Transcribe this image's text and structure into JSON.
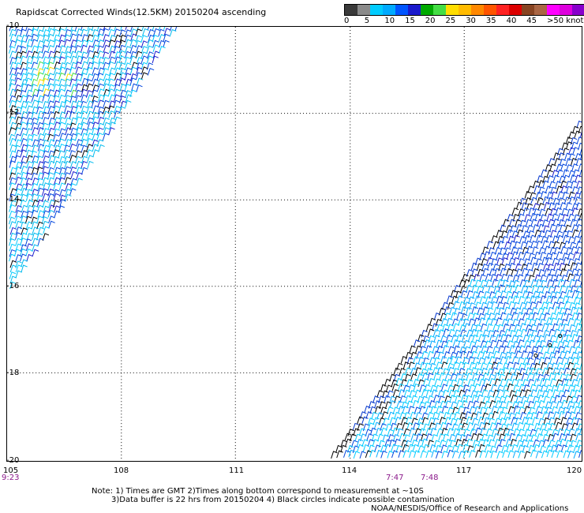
{
  "title": "Rapidscat Corrected Winds(12.5KM) 20150204 ascending",
  "legend": {
    "colors": [
      "#3a3a3a",
      "#8a8a8a",
      "#00ccff",
      "#00aaff",
      "#0055ff",
      "#1a1acc",
      "#00aa00",
      "#44dd44",
      "#ffdd00",
      "#ffbb00",
      "#ff8800",
      "#ff5500",
      "#ff2222",
      "#dd0000",
      "#884422",
      "#aa6644",
      "#ff00ff",
      "#dd00dd",
      "#8800cc",
      "#550099"
    ],
    "labels": [
      "0",
      "5",
      "10",
      "15",
      "20",
      "25",
      "30",
      "35",
      "40",
      "45",
      ">50 knots"
    ]
  },
  "axes": {
    "lat_labels": [
      "-10",
      "-12",
      "-14",
      "-16",
      "-18",
      "-20"
    ],
    "lon_labels": [
      "105",
      "108",
      "111",
      "114",
      "117",
      "120"
    ]
  },
  "times": [
    "9:23",
    "7:47",
    "7:48"
  ],
  "notes": {
    "line1": "Note: 1) Times are GMT 2)Times along bottom correspond to measurement at ~10S",
    "line2": "3)Data buffer is 22 hrs from 20150204 4) Black circles indicate possible contamination",
    "line3": "NOAA/NESDIS/Office of Research and Applications"
  }
}
